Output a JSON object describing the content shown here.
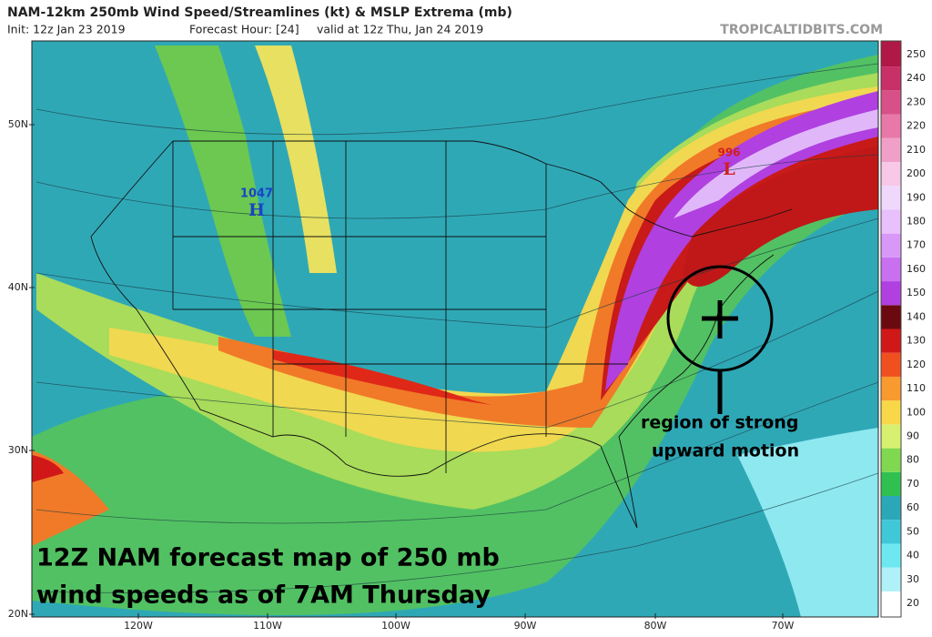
{
  "header": {
    "title": "NAM-12km 250mb Wind Speed/Streamlines (kt) & MSLP Extrema (mb)",
    "init": "Init: 12z Jan 23 2019",
    "forecast_hour": "Forecast Hour: [24]",
    "valid": "valid at 12z Thu, Jan 24 2019",
    "source": "TROPICALTIDBITS.COM"
  },
  "map": {
    "lat_labels": [
      "50N",
      "40N",
      "30N",
      "20N"
    ],
    "lon_labels": [
      "120W",
      "110W",
      "100W",
      "90W",
      "80W",
      "70W"
    ],
    "high": {
      "pressure": "1047",
      "symbol": "H"
    },
    "low": {
      "pressure": "996",
      "symbol": "L"
    },
    "annotation": [
      "region of strong",
      "upward motion"
    ],
    "caption": [
      "12Z NAM forecast map of 250 mb",
      "wind speeds as of 7AM Thursday"
    ]
  },
  "colorbar": {
    "ticks": [
      20,
      30,
      40,
      50,
      60,
      70,
      80,
      90,
      100,
      110,
      120,
      130,
      140,
      150,
      160,
      170,
      180,
      190,
      200,
      210,
      220,
      230,
      240,
      250
    ],
    "colors": [
      "#ffffff",
      "#b0f0f8",
      "#6ee8f0",
      "#40c8d8",
      "#2aa8b8",
      "#30c050",
      "#80d850",
      "#d8f070",
      "#f8d848",
      "#f89a30",
      "#f05020",
      "#d01818",
      "#6a0a10",
      "#b040e0",
      "#c870f0",
      "#d898f8",
      "#e8c0fc",
      "#f0d8fc",
      "#f8c8e8",
      "#f0a0c8",
      "#e878a8",
      "#d85088",
      "#c83068",
      "#b01848"
    ]
  }
}
